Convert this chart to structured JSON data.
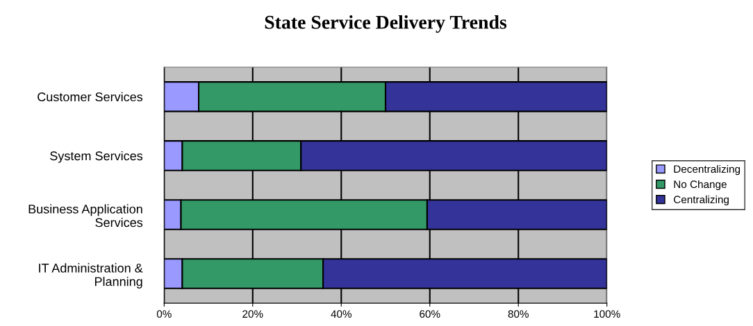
{
  "chart_data": {
    "type": "bar",
    "title": "State Service Delivery Trends",
    "orientation": "horizontal",
    "stacked": true,
    "categories": [
      "Customer Services",
      "System Services",
      "Business Application\nServices",
      "IT Administration &\nPlanning"
    ],
    "series": [
      {
        "name": "Decentralizing",
        "color": "#9999ff",
        "values": [
          7.8,
          4.1,
          3.8,
          4.1
        ]
      },
      {
        "name": "No Change",
        "color": "#339966",
        "values": [
          42.2,
          26.8,
          55.6,
          31.8
        ]
      },
      {
        "name": "Centralizing",
        "color": "#333399",
        "values": [
          50.0,
          69.1,
          40.6,
          64.1
        ]
      }
    ],
    "xlim": [
      0,
      100
    ],
    "xticks": [
      {
        "value": 0,
        "label": "0%"
      },
      {
        "value": 20,
        "label": "20%"
      },
      {
        "value": 40,
        "label": "40%"
      },
      {
        "value": 60,
        "label": "60%"
      },
      {
        "value": 80,
        "label": "80%"
      },
      {
        "value": 100,
        "label": "100%"
      }
    ],
    "grid": "x",
    "legend": "right"
  }
}
